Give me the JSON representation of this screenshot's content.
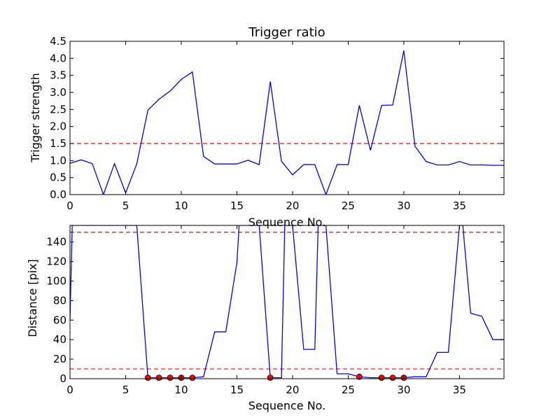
{
  "chart_data": [
    {
      "type": "line",
      "title": "Trigger ratio",
      "xlabel": "Sequence No.",
      "ylabel": "Trigger strength",
      "xlim": [
        0,
        39
      ],
      "ylim": [
        0,
        4.5
      ],
      "xticks": [
        "0",
        "5",
        "10",
        "15",
        "20",
        "25",
        "30",
        "35"
      ],
      "yticks": [
        "0.0",
        "0.5",
        "1.0",
        "1.5",
        "2.0",
        "2.5",
        "3.0",
        "3.5",
        "4.0",
        "4.5"
      ],
      "grid": false,
      "series": [
        {
          "color": "#0000ff",
          "x": [
            0,
            1,
            2,
            3,
            4,
            5,
            6,
            7,
            8,
            9,
            10,
            11,
            12,
            13,
            14,
            15,
            16,
            17,
            18,
            19,
            20,
            21,
            22,
            23,
            24,
            25,
            26,
            27,
            28,
            29,
            30,
            31,
            32,
            33,
            34,
            35,
            36,
            37,
            38,
            39
          ],
          "y": [
            0.92,
            1.02,
            0.91,
            0.0,
            0.91,
            0.05,
            0.9,
            2.48,
            2.8,
            3.04,
            3.38,
            3.6,
            1.12,
            0.9,
            0.9,
            0.9,
            1.01,
            0.88,
            3.32,
            0.98,
            0.58,
            0.88,
            0.88,
            0.0,
            0.88,
            0.88,
            2.62,
            1.3,
            2.62,
            2.63,
            4.23,
            1.42,
            0.97,
            0.87,
            0.87,
            0.97,
            0.87,
            0.87,
            0.86,
            0.86
          ]
        }
      ],
      "threshold_lines": [
        {
          "y": 1.5,
          "color": "#ff0000",
          "style": "dashed"
        }
      ]
    },
    {
      "type": "line",
      "title": "",
      "xlabel": "Sequence No.",
      "ylabel": "Distance [pix]",
      "xlim": [
        0,
        39
      ],
      "ylim": [
        0,
        157
      ],
      "xticks": [
        "0",
        "5",
        "10",
        "15",
        "20",
        "25",
        "30",
        "35"
      ],
      "yticks": [
        "0",
        "20",
        "40",
        "60",
        "80",
        "100",
        "120",
        "140"
      ],
      "grid": false,
      "series": [
        {
          "color": "#0000ff",
          "x": [
            0,
            0.2,
            6,
            7,
            8,
            9,
            10,
            11,
            12,
            13,
            14,
            15,
            15.2,
            17,
            18,
            19,
            19.3,
            20,
            21,
            22,
            22.3,
            23,
            24,
            25,
            26,
            27,
            28,
            29,
            30,
            31,
            32,
            33,
            34,
            35,
            35.3,
            36,
            37,
            38,
            39
          ],
          "y": [
            60,
            157,
            157,
            1,
            1,
            1,
            1,
            1,
            2,
            48,
            48,
            119,
            157,
            157,
            1,
            1,
            157,
            157,
            30,
            30,
            157,
            157,
            5,
            5,
            2,
            1,
            1,
            1,
            1,
            2,
            2,
            27,
            27,
            157,
            157,
            67,
            64,
            40,
            40
          ]
        }
      ],
      "markers": {
        "color": "#ff0000",
        "x": [
          7,
          8,
          9,
          10,
          11,
          18,
          26,
          28,
          29,
          30
        ],
        "y": [
          1,
          1,
          1,
          1,
          1,
          1,
          2,
          1,
          1,
          1
        ]
      },
      "threshold_lines": [
        {
          "y": 150,
          "color": "#ff0000",
          "style": "dashed"
        },
        {
          "y": 10,
          "color": "#ff0000",
          "style": "dashed"
        }
      ]
    }
  ]
}
